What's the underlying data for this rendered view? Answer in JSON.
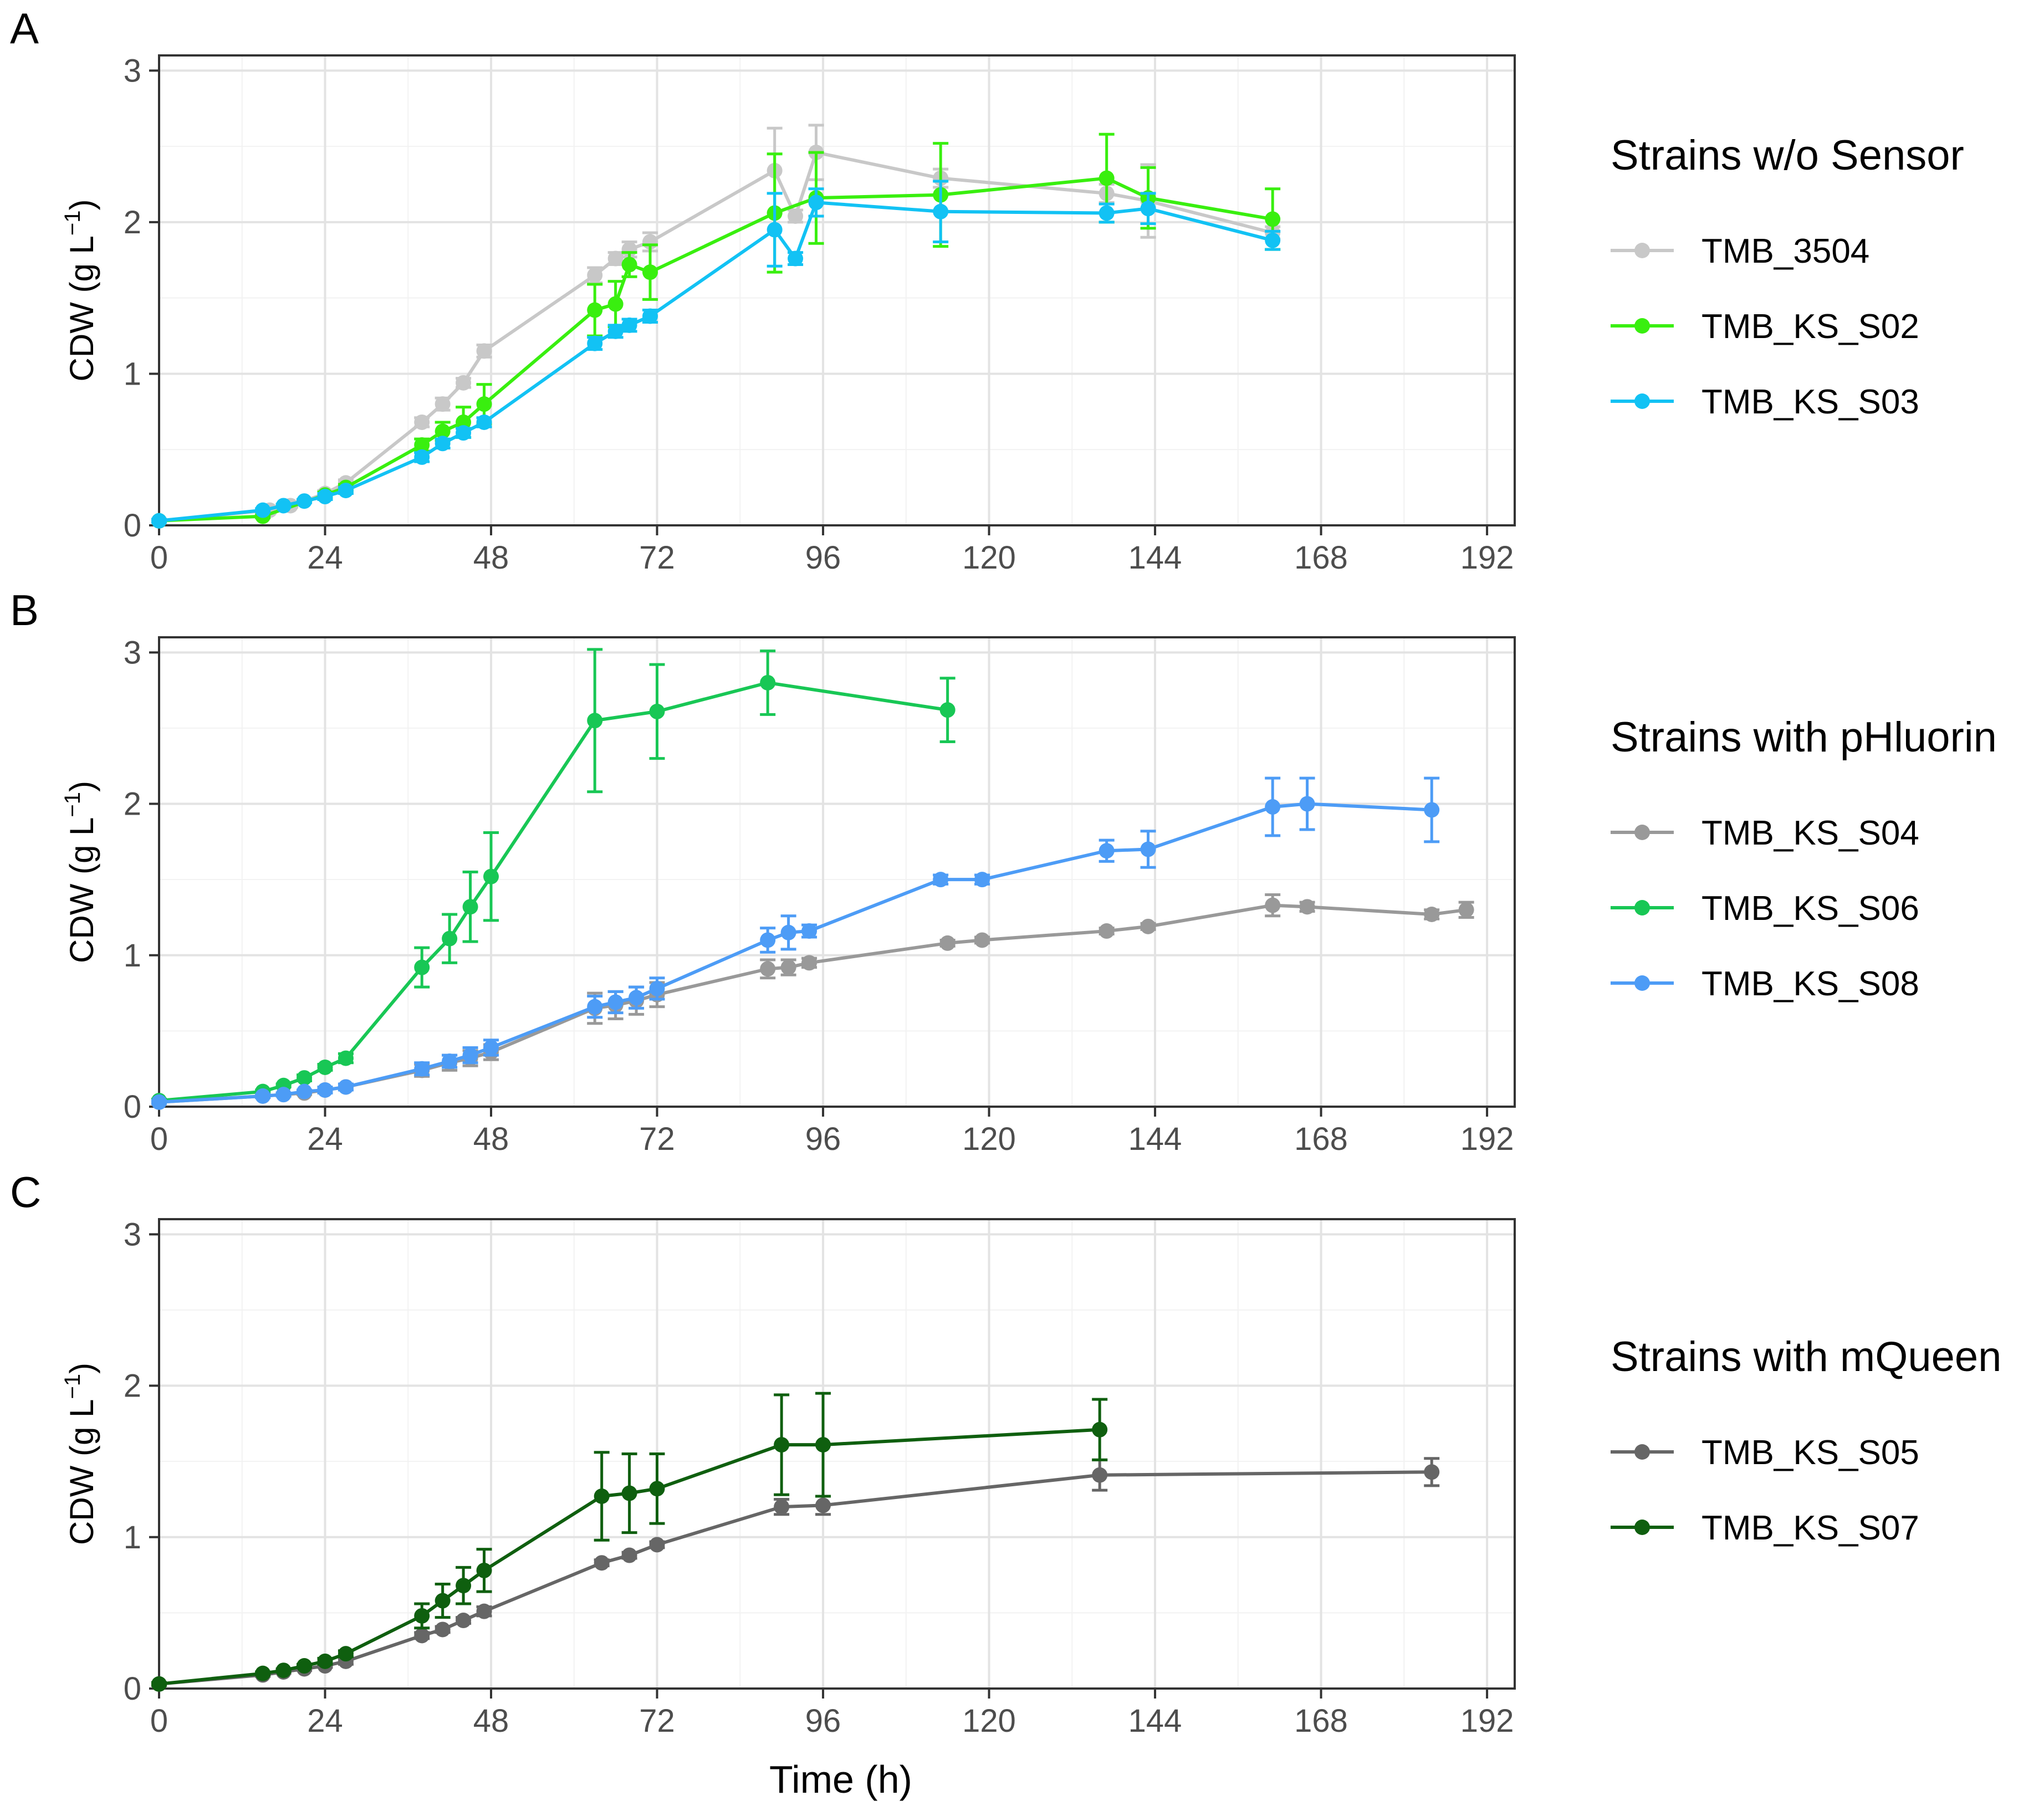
{
  "figure": {
    "xlabel": "Time (h)"
  },
  "chart_data": [
    {
      "type": "line",
      "panel": "A",
      "ylabel": "CDW (g L",
      "ylabel_sup": "−1",
      "ylabel_close": ")",
      "xlim": [
        0,
        196
      ],
      "ylim": [
        0,
        3.1
      ],
      "xticks": [
        0,
        24,
        48,
        72,
        96,
        120,
        144,
        168,
        192
      ],
      "yticks": [
        0,
        1,
        2,
        3
      ],
      "grid": true,
      "legend": {
        "title": "Strains w/o Sensor",
        "position": "right"
      },
      "series": [
        {
          "name": "TMB_3504",
          "color": "#c8c8c8",
          "x": [
            0,
            16,
            19,
            21,
            24,
            27,
            38,
            41,
            44,
            47,
            63,
            66,
            68,
            71,
            89,
            92,
            95,
            113,
            137,
            143,
            161
          ],
          "y": [
            0.03,
            0.1,
            0.13,
            0.16,
            0.21,
            0.28,
            0.68,
            0.8,
            0.94,
            1.15,
            1.65,
            1.76,
            1.82,
            1.87,
            2.34,
            2.04,
            2.46,
            2.29,
            2.19,
            2.14,
            1.93
          ],
          "err": [
            0.01,
            0.01,
            0.01,
            0.01,
            0.02,
            0.02,
            0.03,
            0.04,
            0.03,
            0.04,
            0.05,
            0.04,
            0.05,
            0.06,
            0.28,
            0.04,
            0.18,
            0.06,
            0.06,
            0.24,
            0.04
          ]
        },
        {
          "name": "TMB_KS_S02",
          "color": "#39ef0f",
          "x": [
            0,
            15,
            24,
            27,
            38,
            41,
            44,
            47,
            63,
            66,
            68,
            71,
            89,
            95,
            113,
            137,
            143,
            161
          ],
          "y": [
            0.03,
            0.06,
            0.2,
            0.25,
            0.53,
            0.62,
            0.68,
            0.8,
            1.42,
            1.46,
            1.72,
            1.67,
            2.06,
            2.16,
            2.18,
            2.29,
            2.16,
            2.02
          ],
          "err": [
            0.01,
            0.01,
            0.02,
            0.02,
            0.04,
            0.06,
            0.1,
            0.13,
            0.17,
            0.15,
            0.08,
            0.18,
            0.39,
            0.3,
            0.34,
            0.29,
            0.2,
            0.2
          ]
        },
        {
          "name": "TMB_KS_S03",
          "color": "#12c2f4",
          "x": [
            0,
            15,
            18,
            21,
            24,
            27,
            38,
            41,
            44,
            47,
            63,
            66,
            68,
            71,
            89,
            92,
            95,
            113,
            137,
            143,
            161
          ],
          "y": [
            0.03,
            0.1,
            0.13,
            0.16,
            0.19,
            0.23,
            0.45,
            0.54,
            0.61,
            0.68,
            1.2,
            1.28,
            1.32,
            1.38,
            1.95,
            1.76,
            2.13,
            2.07,
            2.06,
            2.09,
            1.88
          ],
          "err": [
            0.01,
            0.01,
            0.01,
            0.01,
            0.02,
            0.02,
            0.03,
            0.03,
            0.03,
            0.03,
            0.04,
            0.04,
            0.04,
            0.04,
            0.24,
            0.04,
            0.09,
            0.2,
            0.06,
            0.1,
            0.06
          ]
        }
      ]
    },
    {
      "type": "line",
      "panel": "B",
      "ylabel": "CDW (g L",
      "ylabel_sup": "−1",
      "ylabel_close": ")",
      "xlim": [
        0,
        196
      ],
      "ylim": [
        0,
        3.1
      ],
      "xticks": [
        0,
        24,
        48,
        72,
        96,
        120,
        144,
        168,
        192
      ],
      "yticks": [
        0,
        1,
        2,
        3
      ],
      "grid": true,
      "legend": {
        "title": "Strains with pHluorin",
        "position": "right"
      },
      "series": [
        {
          "name": "TMB_KS_S04",
          "color": "#999999",
          "x": [
            0,
            15,
            18,
            21,
            24,
            27,
            38,
            42,
            45,
            48,
            63,
            66,
            69,
            72,
            88,
            91,
            94,
            114,
            119,
            137,
            143,
            161,
            166,
            184,
            189
          ],
          "y": [
            0.03,
            0.07,
            0.08,
            0.09,
            0.11,
            0.13,
            0.24,
            0.29,
            0.32,
            0.36,
            0.65,
            0.67,
            0.7,
            0.74,
            0.91,
            0.92,
            0.95,
            1.08,
            1.1,
            1.16,
            1.19,
            1.33,
            1.32,
            1.27,
            1.3
          ],
          "err": [
            0.01,
            0.01,
            0.01,
            0.01,
            0.01,
            0.02,
            0.04,
            0.05,
            0.05,
            0.05,
            0.1,
            0.09,
            0.09,
            0.08,
            0.06,
            0.05,
            0.03,
            0.02,
            0.02,
            0.02,
            0.02,
            0.07,
            0.03,
            0.03,
            0.05
          ]
        },
        {
          "name": "TMB_KS_S06",
          "color": "#18c755",
          "x": [
            0,
            15,
            18,
            21,
            24,
            27,
            38,
            42,
            45,
            48,
            63,
            72,
            88,
            114
          ],
          "y": [
            0.04,
            0.1,
            0.14,
            0.19,
            0.26,
            0.32,
            0.92,
            1.11,
            1.32,
            1.52,
            2.55,
            2.61,
            2.8,
            2.62
          ],
          "err": [
            0.01,
            0.01,
            0.01,
            0.02,
            0.02,
            0.03,
            0.13,
            0.16,
            0.23,
            0.29,
            0.47,
            0.31,
            0.21,
            0.21
          ]
        },
        {
          "name": "TMB_KS_S08",
          "color": "#4d9cf6",
          "x": [
            0,
            15,
            18,
            21,
            24,
            27,
            38,
            42,
            45,
            48,
            63,
            66,
            69,
            72,
            88,
            91,
            94,
            113,
            119,
            137,
            143,
            161,
            166,
            184
          ],
          "y": [
            0.03,
            0.07,
            0.08,
            0.1,
            0.11,
            0.13,
            0.25,
            0.3,
            0.34,
            0.39,
            0.66,
            0.69,
            0.72,
            0.78,
            1.1,
            1.15,
            1.16,
            1.5,
            1.5,
            1.69,
            1.7,
            1.98,
            2.0,
            1.96
          ],
          "err": [
            0.01,
            0.01,
            0.01,
            0.01,
            0.02,
            0.02,
            0.04,
            0.04,
            0.05,
            0.05,
            0.07,
            0.07,
            0.07,
            0.07,
            0.08,
            0.11,
            0.04,
            0.03,
            0.03,
            0.07,
            0.12,
            0.19,
            0.17,
            0.21
          ]
        }
      ]
    },
    {
      "type": "line",
      "panel": "C",
      "ylabel": "CDW (g L",
      "ylabel_sup": "−1",
      "ylabel_close": ")",
      "xlim": [
        0,
        196
      ],
      "ylim": [
        0,
        3.1
      ],
      "xticks": [
        0,
        24,
        48,
        72,
        96,
        120,
        144,
        168,
        192
      ],
      "yticks": [
        0,
        1,
        2,
        3
      ],
      "grid": true,
      "legend": {
        "title": "Strains with mQueen",
        "position": "right"
      },
      "series": [
        {
          "name": "TMB_KS_S05",
          "color": "#666666",
          "x": [
            0,
            15,
            18,
            21,
            24,
            27,
            38,
            41,
            44,
            47,
            64,
            68,
            72,
            90,
            96,
            136,
            184
          ],
          "y": [
            0.03,
            0.09,
            0.11,
            0.13,
            0.15,
            0.18,
            0.35,
            0.39,
            0.45,
            0.51,
            0.83,
            0.88,
            0.95,
            1.2,
            1.21,
            1.41,
            1.43
          ],
          "err": [
            0.01,
            0.01,
            0.01,
            0.01,
            0.01,
            0.02,
            0.02,
            0.02,
            0.02,
            0.03,
            0.02,
            0.02,
            0.02,
            0.05,
            0.06,
            0.1,
            0.09
          ]
        },
        {
          "name": "TMB_KS_S07",
          "color": "#0f5f0f",
          "x": [
            0,
            15,
            18,
            21,
            24,
            27,
            38,
            41,
            44,
            47,
            64,
            68,
            72,
            90,
            96,
            136
          ],
          "y": [
            0.03,
            0.1,
            0.12,
            0.15,
            0.18,
            0.23,
            0.48,
            0.58,
            0.68,
            0.78,
            1.27,
            1.29,
            1.32,
            1.61,
            1.61,
            1.71
          ],
          "err": [
            0.01,
            0.01,
            0.01,
            0.01,
            0.02,
            0.02,
            0.08,
            0.11,
            0.12,
            0.14,
            0.29,
            0.26,
            0.23,
            0.33,
            0.34,
            0.2
          ]
        }
      ]
    }
  ]
}
